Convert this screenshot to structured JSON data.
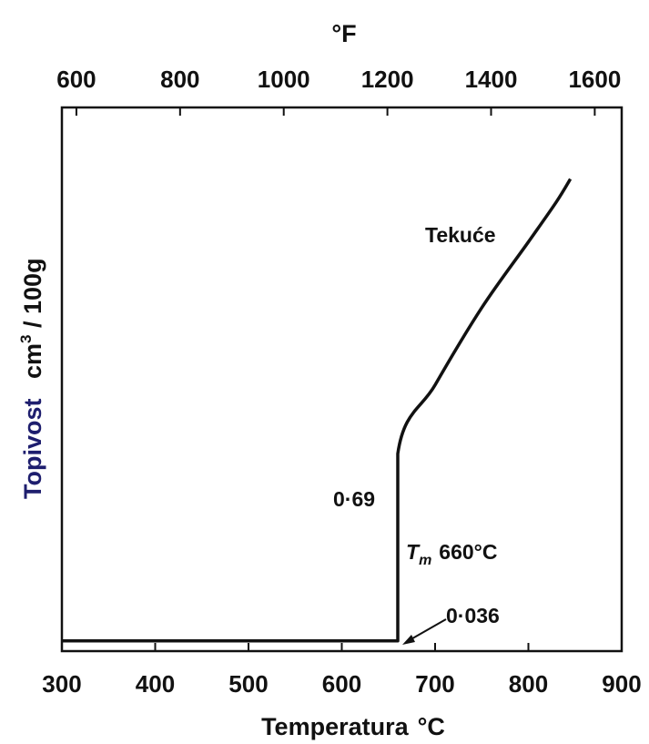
{
  "chart_data": {
    "type": "line",
    "title": "",
    "xlabel": "Temperatura",
    "xlabel_unit": "°C",
    "top_xlabel": "°F",
    "ylabel": "Topivost",
    "ylabel_unit_base": "cm",
    "ylabel_unit_sup": "3",
    "ylabel_unit_rest": " / 100g",
    "xlim": [
      300,
      900
    ],
    "top_xlim_F": [
      572,
      1652
    ],
    "x_ticks": [
      "300",
      "400",
      "500",
      "600",
      "700",
      "800",
      "900"
    ],
    "top_x_ticks": [
      "600",
      "800",
      "1000",
      "1200",
      "1400",
      "1600"
    ],
    "y_scale": "unlabeled",
    "ylim": [
      0,
      1.9
    ],
    "grid": false,
    "series": [
      {
        "name": "",
        "x": [
          300,
          655,
          660,
          660,
          700,
          750,
          800,
          830,
          845
        ],
        "y": [
          0.036,
          0.036,
          0.036,
          0.69,
          0.93,
          1.2,
          1.43,
          1.57,
          1.65
        ]
      }
    ],
    "annotations": {
      "region_label": "Tekuće",
      "jump_value": "0·69",
      "melting_point_symbol": "T",
      "melting_point_subscript": "m",
      "melting_point_value": "660°C",
      "solid_value": "0·036"
    }
  }
}
